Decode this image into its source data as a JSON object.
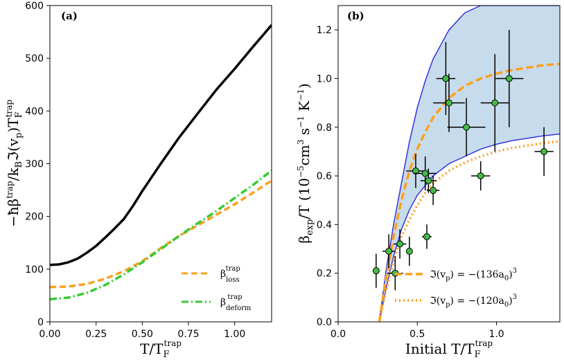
{
  "chart_data": [
    {
      "panel": "(a)",
      "type": "line",
      "xlabel": "T/T_F^trap",
      "ylabel": "−ħβ^trap/k_B ℑ(v_p) T_F^trap",
      "xlim": [
        0.0,
        1.2
      ],
      "ylim": [
        0,
        600
      ],
      "xticks": [
        "0.00",
        "0.25",
        "0.50",
        "0.75",
        "1.00"
      ],
      "xtick_values": [
        0.0,
        0.25,
        0.5,
        0.75,
        1.0
      ],
      "yticks": [
        "0",
        "100",
        "200",
        "300",
        "400",
        "500",
        "600"
      ],
      "ytick_values": [
        0,
        100,
        200,
        300,
        400,
        500,
        600
      ],
      "series": [
        {
          "name": "total",
          "legend": "",
          "color": "#000000",
          "style": "solid",
          "x": [
            0,
            0.05,
            0.1,
            0.15,
            0.2,
            0.25,
            0.3,
            0.35,
            0.4,
            0.45,
            0.5,
            0.6,
            0.7,
            0.8,
            0.9,
            1.0,
            1.1,
            1.2
          ],
          "y": [
            108,
            109,
            113,
            120,
            131,
            144,
            160,
            177,
            195,
            220,
            248,
            300,
            350,
            395,
            440,
            480,
            522,
            563
          ]
        },
        {
          "name": "loss",
          "legend": "β_loss^trap",
          "color": "#ff9f1c",
          "style": "dash",
          "x": [
            0,
            0.1,
            0.2,
            0.3,
            0.4,
            0.5,
            0.6,
            0.7,
            0.8,
            0.9,
            1.0,
            1.1,
            1.2
          ],
          "y": [
            66,
            67,
            72,
            82,
            96,
            115,
            140,
            163,
            183,
            203,
            223,
            245,
            268
          ]
        },
        {
          "name": "deform",
          "legend": "β_deform^trap",
          "color": "#33cc33",
          "style": "dashdot",
          "x": [
            0,
            0.1,
            0.2,
            0.3,
            0.4,
            0.5,
            0.6,
            0.7,
            0.8,
            0.9,
            1.0,
            1.1,
            1.2
          ],
          "y": [
            43,
            46,
            55,
            70,
            90,
            113,
            138,
            163,
            187,
            210,
            235,
            260,
            287
          ]
        }
      ],
      "legend_position": "bottom-right"
    },
    {
      "panel": "(b)",
      "type": "scatter",
      "xlabel": "Initial T/T_F^trap",
      "ylabel": "β_exp/T (10⁻⁵cm³ s⁻¹ K⁻¹)",
      "xlim": [
        0.0,
        1.4
      ],
      "ylim": [
        0.0,
        1.3
      ],
      "xticks": [
        "0.0",
        "0.5",
        "1.0"
      ],
      "xtick_values": [
        0.0,
        0.5,
        1.0
      ],
      "yticks": [
        "0.0",
        "0.2",
        "0.4",
        "0.6",
        "0.8",
        "1.0",
        "1.2"
      ],
      "ytick_values": [
        0.0,
        0.2,
        0.4,
        0.6,
        0.8,
        1.0,
        1.2
      ],
      "points": [
        {
          "x": 0.24,
          "y": 0.21,
          "xerr": 0.02,
          "yerr": 0.07
        },
        {
          "x": 0.32,
          "y": 0.29,
          "xerr": 0.04,
          "yerr": 0.07
        },
        {
          "x": 0.36,
          "y": 0.2,
          "xerr": 0.05,
          "yerr": 0.07
        },
        {
          "x": 0.39,
          "y": 0.32,
          "xerr": 0.04,
          "yerr": 0.06
        },
        {
          "x": 0.45,
          "y": 0.29,
          "xerr": 0.02,
          "yerr": 0.06
        },
        {
          "x": 0.49,
          "y": 0.62,
          "xerr": 0.06,
          "yerr": 0.07
        },
        {
          "x": 0.55,
          "y": 0.61,
          "xerr": 0.07,
          "yerr": 0.07
        },
        {
          "x": 0.57,
          "y": 0.58,
          "xerr": 0.05,
          "yerr": 0.05
        },
        {
          "x": 0.6,
          "y": 0.54,
          "xerr": 0.04,
          "yerr": 0.06
        },
        {
          "x": 0.56,
          "y": 0.35,
          "xerr": 0.03,
          "yerr": 0.05
        },
        {
          "x": 0.68,
          "y": 1.0,
          "xerr": 0.06,
          "yerr": 0.15
        },
        {
          "x": 0.7,
          "y": 0.9,
          "xerr": 0.1,
          "yerr": 0.12
        },
        {
          "x": 0.81,
          "y": 0.8,
          "xerr": 0.12,
          "yerr": 0.12
        },
        {
          "x": 0.9,
          "y": 0.6,
          "xerr": 0.06,
          "yerr": 0.06
        },
        {
          "x": 0.99,
          "y": 0.9,
          "xerr": 0.09,
          "yerr": 0.2
        },
        {
          "x": 1.08,
          "y": 1.0,
          "xerr": 0.09,
          "yerr": 0.2
        },
        {
          "x": 1.3,
          "y": 0.7,
          "xerr": 0.06,
          "yerr": 0.1
        }
      ],
      "band": {
        "upper_x": [
          0.26,
          0.3,
          0.35,
          0.4,
          0.45,
          0.5,
          0.55,
          0.6,
          0.7,
          0.8,
          0.9,
          1.0,
          1.04,
          1.4
        ],
        "upper_y": [
          0.0,
          0.2,
          0.4,
          0.57,
          0.74,
          0.88,
          0.99,
          1.08,
          1.2,
          1.27,
          1.3,
          1.3,
          1.3,
          1.3
        ],
        "lower_x": [
          0.26,
          0.3,
          0.35,
          0.4,
          0.45,
          0.5,
          0.55,
          0.6,
          0.7,
          0.8,
          0.9,
          1.0,
          1.1,
          1.2,
          1.3,
          1.4
        ],
        "lower_y": [
          0.0,
          0.13,
          0.27,
          0.38,
          0.46,
          0.52,
          0.56,
          0.6,
          0.65,
          0.68,
          0.71,
          0.73,
          0.745,
          0.755,
          0.765,
          0.772
        ],
        "color": "#c6dbeb",
        "edge_color": "#3333dd"
      },
      "series": [
        {
          "name": "a136",
          "legend": "ℑ(v_p) = −(136a₀)³",
          "color": "#ff9f1c",
          "style": "dash",
          "x": [
            0.26,
            0.3,
            0.35,
            0.4,
            0.45,
            0.5,
            0.55,
            0.6,
            0.7,
            0.8,
            0.9,
            1.0,
            1.1,
            1.2,
            1.3,
            1.4
          ],
          "y": [
            0.0,
            0.17,
            0.35,
            0.5,
            0.62,
            0.71,
            0.78,
            0.84,
            0.92,
            0.97,
            1.0,
            1.02,
            1.035,
            1.045,
            1.055,
            1.06
          ]
        },
        {
          "name": "a120",
          "legend": "ℑ(v_p) = −(120a₀)³",
          "color": "#ff9f1c",
          "style": "dot",
          "x": [
            0.26,
            0.3,
            0.35,
            0.4,
            0.45,
            0.5,
            0.55,
            0.6,
            0.7,
            0.8,
            0.9,
            1.0,
            1.1,
            1.2,
            1.3,
            1.4
          ],
          "y": [
            0.0,
            0.12,
            0.25,
            0.35,
            0.42,
            0.48,
            0.53,
            0.57,
            0.62,
            0.655,
            0.68,
            0.7,
            0.715,
            0.725,
            0.735,
            0.742
          ]
        }
      ],
      "legend_position": "bottom-right"
    }
  ],
  "colors": {
    "total": "#000000",
    "orange": "#ff9f1c",
    "green": "#33cc33",
    "band_fill": "#c6dbeb",
    "band_edge": "#3333dd",
    "point_fill": "#44bb44"
  }
}
